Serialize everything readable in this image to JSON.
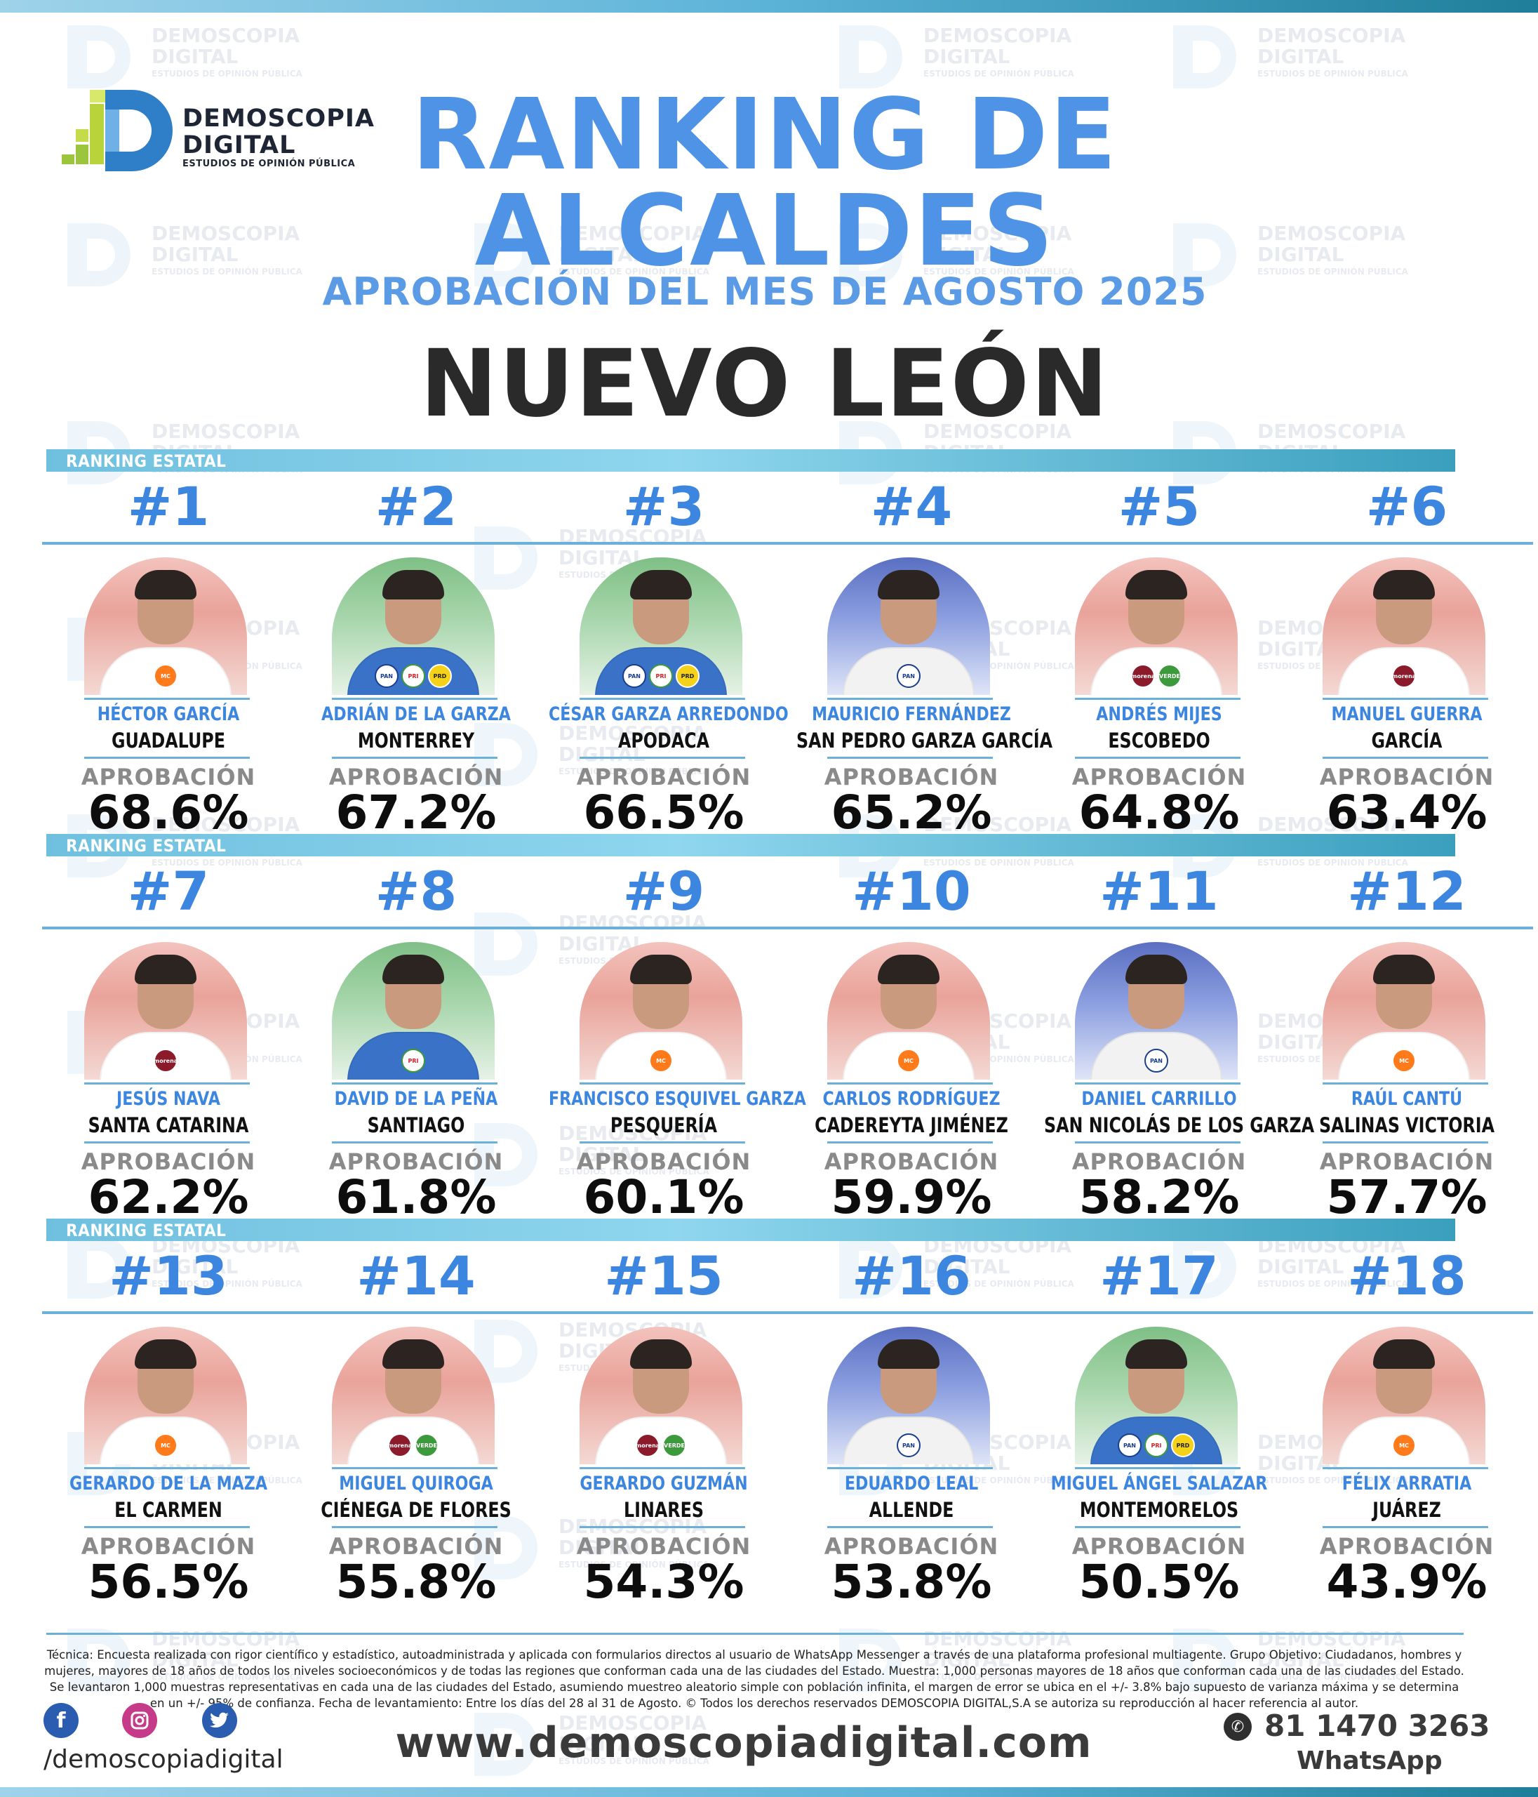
{
  "brand": {
    "name_line1": "DEMOSCOPIA",
    "name_line2": "DIGITAL",
    "tagline": "ESTUDIOS DE OPINIÓN PÚBLICA"
  },
  "header": {
    "title_line1": "RANKING DE",
    "title_line2": "ALCALDES",
    "subtitle": "APROBACIÓN DEL MES DE AGOSTO 2025",
    "state": "NUEVO LEÓN"
  },
  "section_label": "RANKING ESTATAL",
  "approval_label": "APROBACIÓN",
  "colors": {
    "accent_blue": "#3d86e0",
    "bar_blue": "#6fc0df",
    "party_morena": "#8b1a2b",
    "party_mc": "#ff7a1a",
    "party_pan": "#1a3e8c",
    "party_pri": "#d62128",
    "party_verde": "#3c9a3c",
    "party_prd": "#f5d21a"
  },
  "rows": [
    {
      "label": "RANKING ESTATAL",
      "items": [
        {
          "rank": "#1",
          "name": "HÉCTOR GARCÍA",
          "city": "GUADALUPE",
          "approval": "68.6%",
          "bg": "red",
          "parties": [
            "MC"
          ]
        },
        {
          "rank": "#2",
          "name": "ADRIÁN DE LA GARZA",
          "city": "MONTERREY",
          "approval": "67.2%",
          "bg": "green",
          "parties": [
            "PAN",
            "PRI",
            "PRD"
          ]
        },
        {
          "rank": "#3",
          "name": "CÉSAR GARZA ARREDONDO",
          "city": "APODACA",
          "approval": "66.5%",
          "bg": "green",
          "parties": [
            "PAN",
            "PRI",
            "PRD"
          ]
        },
        {
          "rank": "#4",
          "name": "MAURICIO FERNÁNDEZ",
          "city": "SAN PEDRO GARZA GARCÍA",
          "approval": "65.2%",
          "bg": "blue",
          "parties": [
            "PAN"
          ]
        },
        {
          "rank": "#5",
          "name": "ANDRÉS MIJES",
          "city": "ESCOBEDO",
          "approval": "64.8%",
          "bg": "red",
          "parties": [
            "morena",
            "VERDE"
          ]
        },
        {
          "rank": "#6",
          "name": "MANUEL GUERRA",
          "city": "GARCÍA",
          "approval": "63.4%",
          "bg": "red",
          "parties": [
            "morena"
          ]
        }
      ]
    },
    {
      "label": "RANKING ESTATAL",
      "items": [
        {
          "rank": "#7",
          "name": "JESÚS NAVA",
          "city": "SANTA CATARINA",
          "approval": "62.2%",
          "bg": "red",
          "parties": [
            "morena"
          ]
        },
        {
          "rank": "#8",
          "name": "DAVID DE LA PEÑA",
          "city": "SANTIAGO",
          "approval": "61.8%",
          "bg": "green",
          "parties": [
            "PRI"
          ]
        },
        {
          "rank": "#9",
          "name": "FRANCISCO ESQUIVEL GARZA",
          "city": "PESQUERÍA",
          "approval": "60.1%",
          "bg": "red",
          "parties": [
            "MC"
          ]
        },
        {
          "rank": "#10",
          "name": "CARLOS RODRÍGUEZ",
          "city": "CADEREYTA JIMÉNEZ",
          "approval": "59.9%",
          "bg": "red",
          "parties": [
            "MC"
          ]
        },
        {
          "rank": "#11",
          "name": "DANIEL CARRILLO",
          "city": "SAN NICOLÁS DE LOS GARZA",
          "approval": "58.2%",
          "bg": "blue",
          "parties": [
            "PAN"
          ]
        },
        {
          "rank": "#12",
          "name": "RAÚL CANTÚ",
          "city": "SALINAS VICTORIA",
          "approval": "57.7%",
          "bg": "red",
          "parties": [
            "MC"
          ]
        }
      ]
    },
    {
      "label": "RANKING ESTATAL",
      "items": [
        {
          "rank": "#13",
          "name": "GERARDO DE LA MAZA",
          "city": "EL CARMEN",
          "approval": "56.5%",
          "bg": "red",
          "parties": [
            "MC"
          ]
        },
        {
          "rank": "#14",
          "name": "MIGUEL QUIROGA",
          "city": "CIÉNEGA DE FLORES",
          "approval": "55.8%",
          "bg": "red",
          "parties": [
            "morena",
            "VERDE"
          ]
        },
        {
          "rank": "#15",
          "name": "GERARDO GUZMÁN",
          "city": "LINARES",
          "approval": "54.3%",
          "bg": "red",
          "parties": [
            "morena",
            "VERDE"
          ]
        },
        {
          "rank": "#16",
          "name": "EDUARDO LEAL",
          "city": "ALLENDE",
          "approval": "53.8%",
          "bg": "blue",
          "parties": [
            "PAN"
          ]
        },
        {
          "rank": "#17",
          "name": "MIGUEL ÁNGEL SALAZAR",
          "city": "MONTEMORELOS",
          "approval": "50.5%",
          "bg": "green",
          "parties": [
            "PAN",
            "PRI",
            "PRD"
          ]
        },
        {
          "rank": "#18",
          "name": "FÉLIX ARRATIA",
          "city": "JUÁREZ",
          "approval": "43.9%",
          "bg": "red",
          "parties": [
            "MC"
          ]
        }
      ]
    }
  ],
  "footer": {
    "note": "Técnica: Encuesta realizada con rigor científico y estadístico, autoadministrada y aplicada con formularios directos al usuario de WhatsApp Messenger a través de una plataforma profesional multiagente. Grupo Objetivo: Ciudadanos, hombres y mujeres, mayores de 18 años de todos los niveles socioeconómicos y de todas las regiones que conforman cada una de las ciudades del Estado. Muestra: 1,000 personas mayores de 18 años que conforman cada una de las ciudades del Estado. Se levantaron 1,000 muestras representativas en cada una de las ciudades del Estado, asumiendo muestreo aleatorio simple con población infinita, el margen de error se ubica en el +/- 3.8% bajo supuesto de varianza máxima y se determina en un +/- 95% de confianza. Fecha de levantamiento: Entre los días del 28 al 31 de Agosto. © Todos los derechos reservados DEMOSCOPIA DIGITAL,S.A se autoriza su reproducción al hacer referencia al autor.",
    "social_handle": "/demoscopiadigital",
    "website": "www.demoscopiadigital.com",
    "whatsapp_number": "81 1470 3263",
    "whatsapp_label": "WhatsApp",
    "social_icons": [
      "facebook-icon",
      "instagram-icon",
      "twitter-icon"
    ]
  }
}
